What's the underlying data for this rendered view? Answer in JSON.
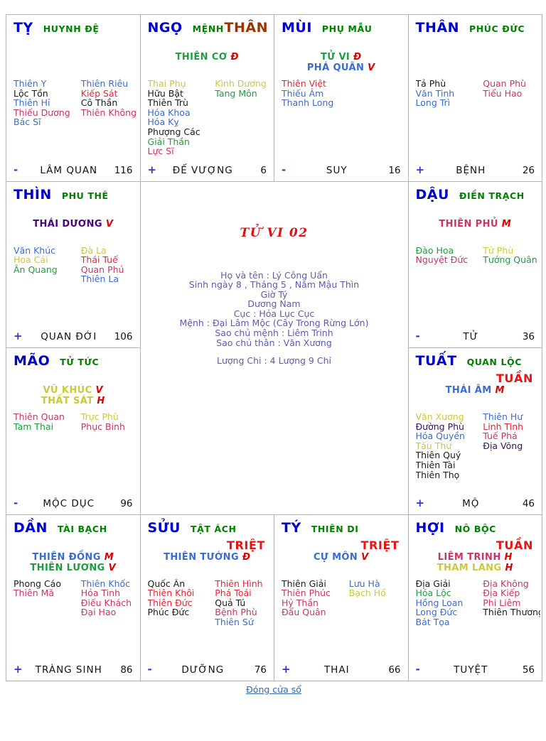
{
  "page": {
    "close_link": "Đóng cửa sổ"
  },
  "colors": {
    "black": "#1a1a1a",
    "blue": "#3a6bd0",
    "green": "#1d9e3e",
    "yellow": "#c9c93e",
    "crimson": "#cc3366",
    "red": "#ee2233",
    "purple": "#4b0082",
    "darkpurple": "#331166"
  },
  "center": {
    "title": "TỬ VI 02",
    "lines": [
      "Họ và tên :  Lý Công Uẩn",
      "Sinh ngày 8 , Tháng 5 , Năm Mậu Thìn",
      "Giờ Tý",
      "Dương Nam",
      "Cục : Hỏa Lục Cục",
      "Mệnh : Đại Lâm Mộc (Cây Trong Rừng Lớn)",
      "Sao chủ mệnh : Liêm Trinh",
      "Sao chủ thân : Văn Xương"
    ],
    "weight_line": "Lượng Chi : 4 Lượng 9 Chỉ"
  },
  "cells": [
    {
      "id": "ty",
      "branch": "TỴ",
      "palace": "HUYNH ĐỆ",
      "marker": "",
      "overlay": "",
      "mains": [],
      "left_stars": [
        {
          "t": "Thiên Y",
          "c": "blue"
        },
        {
          "t": "Lộc Tồn",
          "c": "black"
        },
        {
          "t": "Thiên Hỉ",
          "c": "blue"
        },
        {
          "t": "Thiếu Dương",
          "c": "crimson"
        },
        {
          "t": "Bác Sĩ",
          "c": "blue"
        }
      ],
      "right_stars": [
        {
          "t": "Thiên Riêu",
          "c": "blue"
        },
        {
          "t": "Kiếp Sát",
          "c": "red"
        },
        {
          "t": "Cô Thần",
          "c": "black"
        },
        {
          "t": "Thiên Không",
          "c": "crimson"
        }
      ],
      "foot": {
        "sign": "-",
        "stage": "LÂM QUAN",
        "value": "116"
      }
    },
    {
      "id": "ngo",
      "branch": "NGỌ",
      "palace": "MỆNH",
      "marker": "THÂN",
      "overlay": "",
      "mains": [
        {
          "t": "THIÊN CƠ",
          "c": "green",
          "g": "Đ"
        }
      ],
      "left_stars": [
        {
          "t": "Thai Phụ",
          "c": "yellow"
        },
        {
          "t": "Hữu Bật",
          "c": "black"
        },
        {
          "t": "Thiên Trù",
          "c": "black"
        },
        {
          "t": "Hóa Khoa",
          "c": "blue"
        },
        {
          "t": "Hóa Kỵ",
          "c": "blue"
        },
        {
          "t": "Phượng Các",
          "c": "black"
        },
        {
          "t": "Giải Thần",
          "c": "green"
        },
        {
          "t": "Lực Sĩ",
          "c": "crimson"
        }
      ],
      "right_stars": [
        {
          "t": "Kình Dương",
          "c": "yellow"
        },
        {
          "t": "Tang Môn",
          "c": "green"
        }
      ],
      "foot": {
        "sign": "+",
        "stage": "ĐẾ VƯỢNG",
        "value": "6"
      }
    },
    {
      "id": "mui",
      "branch": "MÙI",
      "palace": "PHỤ MẪU",
      "marker": "",
      "overlay": "",
      "mains": [
        {
          "t": "TỬ VI",
          "c": "green",
          "g": "Đ"
        },
        {
          "t": "PHÁ QUÂN",
          "c": "blue",
          "g": "V"
        }
      ],
      "left_stars": [
        {
          "t": "Thiên Việt",
          "c": "red"
        },
        {
          "t": "Thiếu Âm",
          "c": "blue"
        },
        {
          "t": "Thanh Long",
          "c": "blue"
        }
      ],
      "right_stars": [],
      "foot": {
        "sign": "-",
        "stage": "SUY",
        "value": "16"
      }
    },
    {
      "id": "than",
      "branch": "THÂN",
      "palace": "PHÚC ĐỨC",
      "marker": "",
      "overlay": "",
      "mains": [],
      "left_stars": [
        {
          "t": "Tả Phù",
          "c": "black"
        },
        {
          "t": "Văn Tinh",
          "c": "blue"
        },
        {
          "t": "Long Trì",
          "c": "blue"
        }
      ],
      "right_stars": [
        {
          "t": "Quan Phù",
          "c": "crimson"
        },
        {
          "t": "Tiểu Hao",
          "c": "crimson"
        }
      ],
      "foot": {
        "sign": "+",
        "stage": "BỆNH",
        "value": "26"
      }
    },
    {
      "id": "thin",
      "branch": "THÌN",
      "palace": "PHU THÊ",
      "marker": "",
      "overlay": "",
      "mains": [
        {
          "t": "THÁI DƯƠNG",
          "c": "purple",
          "g": "V"
        }
      ],
      "left_stars": [
        {
          "t": "Văn Khúc",
          "c": "blue"
        },
        {
          "t": "Hoa Cái",
          "c": "yellow"
        },
        {
          "t": "Ân Quang",
          "c": "green"
        }
      ],
      "right_stars": [
        {
          "t": "Đà La",
          "c": "yellow"
        },
        {
          "t": "Thái Tuế",
          "c": "red"
        },
        {
          "t": "Quan Phủ",
          "c": "crimson"
        },
        {
          "t": "Thiên La",
          "c": "blue"
        }
      ],
      "foot": {
        "sign": "+",
        "stage": "QUAN ĐỚI",
        "value": "106"
      }
    },
    {
      "id": "dau",
      "branch": "DẬU",
      "palace": "ĐIỀN TRẠCH",
      "marker": "",
      "overlay": "",
      "mains": [
        {
          "t": "THIÊN PHỦ",
          "c": "crimson",
          "g": "M"
        }
      ],
      "left_stars": [
        {
          "t": "Đào Hoa",
          "c": "green"
        },
        {
          "t": "Nguyệt Đức",
          "c": "crimson"
        }
      ],
      "right_stars": [
        {
          "t": "Tử Phù",
          "c": "yellow"
        },
        {
          "t": "Tướng Quân",
          "c": "green"
        }
      ],
      "foot": {
        "sign": "-",
        "stage": "TỬ",
        "value": "36"
      }
    },
    {
      "id": "mao",
      "branch": "MÃO",
      "palace": "TỬ TỨC",
      "marker": "",
      "overlay": "",
      "mains": [
        {
          "t": "VŨ KHÚC",
          "c": "yellow",
          "g": "V"
        },
        {
          "t": "THẤT SÁT",
          "c": "yellow",
          "g": "H"
        }
      ],
      "left_stars": [
        {
          "t": "Thiên Quan",
          "c": "crimson"
        },
        {
          "t": "Tam Thai",
          "c": "green"
        }
      ],
      "right_stars": [
        {
          "t": "Trực Phù",
          "c": "yellow"
        },
        {
          "t": "Phục Binh",
          "c": "crimson"
        }
      ],
      "foot": {
        "sign": "-",
        "stage": "MỘC DỤC",
        "value": "96"
      }
    },
    {
      "id": "tuat",
      "branch": "TUẤT",
      "palace": "QUAN LỘC",
      "marker": "",
      "overlay": "TUẦN",
      "mains": [
        {
          "t": "THÁI ÂM",
          "c": "blue",
          "g": "M"
        }
      ],
      "left_stars": [
        {
          "t": "Văn Xương",
          "c": "yellow"
        },
        {
          "t": "Đường Phù",
          "c": "darkpurple"
        },
        {
          "t": "Hóa Quyền",
          "c": "blue"
        },
        {
          "t": "Tấu Thư",
          "c": "yellow"
        },
        {
          "t": "Thiên Quý",
          "c": "black"
        },
        {
          "t": "Thiên Tài",
          "c": "black"
        },
        {
          "t": "Thiên Thọ",
          "c": "black"
        }
      ],
      "right_stars": [
        {
          "t": "Thiên Hư",
          "c": "blue"
        },
        {
          "t": "Linh Tinh",
          "c": "red"
        },
        {
          "t": "Tuế Phá",
          "c": "crimson"
        },
        {
          "t": "Địa Võng",
          "c": "darkpurple"
        }
      ],
      "foot": {
        "sign": "+",
        "stage": "MỘ",
        "value": "46"
      }
    },
    {
      "id": "dan",
      "branch": "DẦN",
      "palace": "TÀI BẠCH",
      "marker": "",
      "overlay": "",
      "mains": [
        {
          "t": "THIÊN ĐỒNG",
          "c": "blue",
          "g": "M"
        },
        {
          "t": "THIÊN LƯƠNG",
          "c": "green",
          "g": "V"
        }
      ],
      "left_stars": [
        {
          "t": "Phong Cáo",
          "c": "black"
        },
        {
          "t": "Thiên Mã",
          "c": "crimson"
        }
      ],
      "right_stars": [
        {
          "t": "Thiên Khốc",
          "c": "blue"
        },
        {
          "t": "Hỏa Tinh",
          "c": "crimson"
        },
        {
          "t": "Điếu Khách",
          "c": "crimson"
        },
        {
          "t": "Đại Hao",
          "c": "crimson"
        }
      ],
      "foot": {
        "sign": "+",
        "stage": "TRÀNG SINH",
        "value": "86"
      }
    },
    {
      "id": "suu",
      "branch": "SỬU",
      "palace": "TẬT ÁCH",
      "marker": "",
      "overlay": "TRIỆT",
      "mains": [
        {
          "t": "THIÊN TƯỚNG",
          "c": "blue",
          "g": "Đ"
        }
      ],
      "left_stars": [
        {
          "t": "Quốc Ấn",
          "c": "black"
        },
        {
          "t": "Thiên Khôi",
          "c": "red"
        },
        {
          "t": "Thiên Đức",
          "c": "red"
        },
        {
          "t": "Phúc Đức",
          "c": "black"
        }
      ],
      "right_stars": [
        {
          "t": "Thiên Hình",
          "c": "red"
        },
        {
          "t": "Phá Toái",
          "c": "red"
        },
        {
          "t": "Quả Tú",
          "c": "black"
        },
        {
          "t": "Bệnh Phù",
          "c": "crimson"
        },
        {
          "t": "Thiên Sứ",
          "c": "blue"
        }
      ],
      "foot": {
        "sign": "-",
        "stage": "DƯỠNG",
        "value": "76"
      }
    },
    {
      "id": "tyy",
      "branch": "TÝ",
      "palace": "THIÊN DI",
      "marker": "",
      "overlay": "TRIỆT",
      "mains": [
        {
          "t": "CỰ MÔN",
          "c": "blue",
          "g": "V"
        }
      ],
      "left_stars": [
        {
          "t": "Thiên Giải",
          "c": "black"
        },
        {
          "t": "Thiên Phúc",
          "c": "crimson"
        },
        {
          "t": "Hỷ Thần",
          "c": "crimson"
        },
        {
          "t": "Đẩu Quân",
          "c": "crimson"
        }
      ],
      "right_stars": [
        {
          "t": "Lưu Hà",
          "c": "blue"
        },
        {
          "t": "Bạch Hổ",
          "c": "yellow"
        }
      ],
      "foot": {
        "sign": "+",
        "stage": "THAI",
        "value": "66"
      }
    },
    {
      "id": "hoi",
      "branch": "HỢI",
      "palace": "NÔ BỘC",
      "marker": "",
      "overlay": "TUẦN",
      "mains": [
        {
          "t": "LIÊM TRINH",
          "c": "crimson",
          "g": "H"
        },
        {
          "t": "THAM LANG",
          "c": "yellow",
          "g": "H"
        }
      ],
      "left_stars": [
        {
          "t": "Địa Giải",
          "c": "black"
        },
        {
          "t": "Hóa Lộc",
          "c": "green"
        },
        {
          "t": "Hồng Loan",
          "c": "blue"
        },
        {
          "t": "Long Đức",
          "c": "blue"
        },
        {
          "t": "Bát Tọa",
          "c": "blue"
        }
      ],
      "right_stars": [
        {
          "t": "Địa Không",
          "c": "crimson"
        },
        {
          "t": "Địa Kiếp",
          "c": "crimson"
        },
        {
          "t": "Phi Liêm",
          "c": "crimson"
        },
        {
          "t": "Thiên Thương",
          "c": "black"
        }
      ],
      "foot": {
        "sign": "-",
        "stage": "TUYỆT",
        "value": "56"
      }
    }
  ]
}
